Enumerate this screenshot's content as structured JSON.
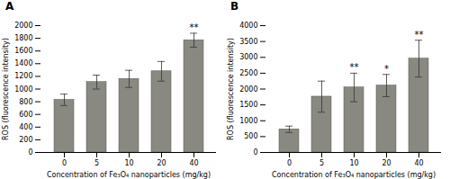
{
  "chart_data": [
    {
      "type": "bar",
      "title": "A",
      "categories": [
        "0",
        "5",
        "10",
        "20",
        "40"
      ],
      "values": [
        830,
        1110,
        1160,
        1280,
        1770
      ],
      "errors": [
        90,
        110,
        135,
        155,
        110
      ],
      "significance": [
        null,
        null,
        null,
        null,
        "**"
      ],
      "xlabel": "Concentration of Fe₃O₄ nanoparticles (mg/kg)",
      "ylabel": "ROS (fluorescence intensity)",
      "ylim": [
        0,
        2000
      ],
      "yticks": [
        0,
        200,
        400,
        600,
        800,
        1000,
        1200,
        1400,
        1600,
        1800,
        2000
      ],
      "color": "#898981",
      "grid": false
    },
    {
      "type": "bar",
      "title": "B",
      "categories": [
        "0",
        "5",
        "10",
        "20",
        "40"
      ],
      "values": [
        730,
        1760,
        2050,
        2110,
        2960
      ],
      "errors": [
        100,
        490,
        450,
        350,
        580
      ],
      "significance": [
        null,
        null,
        "**",
        "*",
        "**"
      ],
      "xlabel": "Concentration of Fe₃O₄ nanoparticles (mg/kg)",
      "ylabel": "ROS (fluorescence intensity)",
      "ylim": [
        0,
        4000
      ],
      "yticks": [
        0,
        500,
        1000,
        1500,
        2000,
        2500,
        3000,
        3500,
        4000
      ],
      "color": "#898981",
      "grid": false
    }
  ]
}
